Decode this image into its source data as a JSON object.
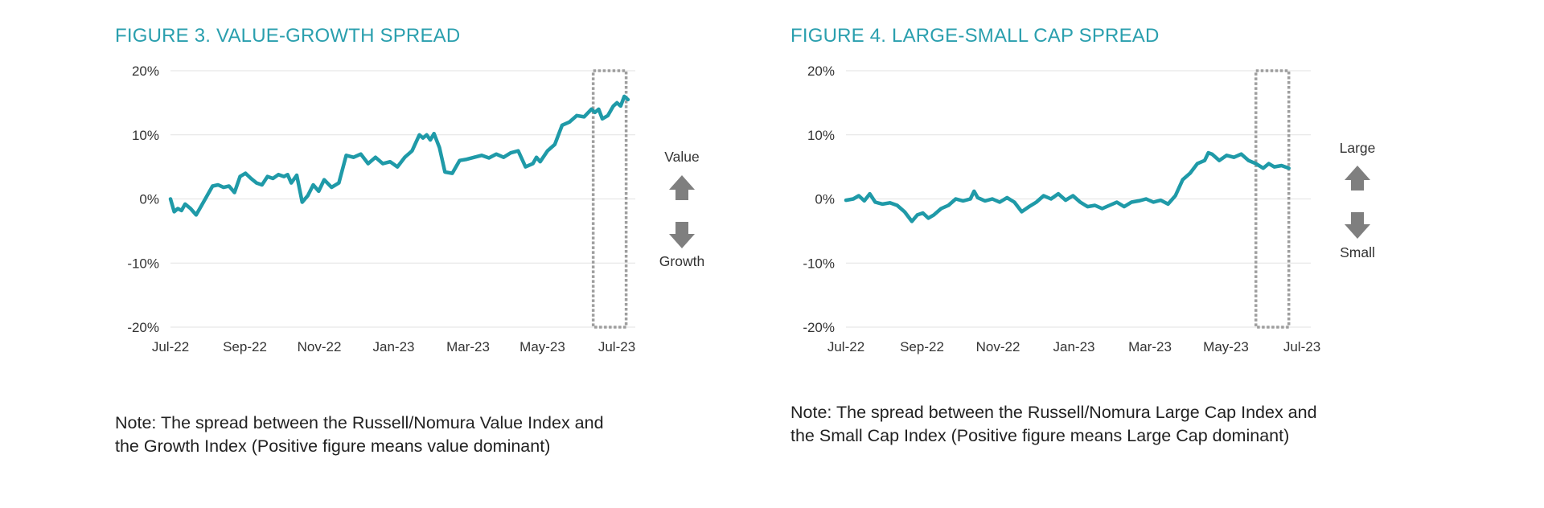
{
  "colors": {
    "title": "#2a9fae",
    "line": "#1f9aa8",
    "grid": "#e2e2e2",
    "highlight": "#9e9e9e",
    "arrow": "#7f7f7f",
    "text": "#222222"
  },
  "figure3": {
    "title": "FIGURE 3. VALUE-GROWTH SPREAD",
    "note_line1": "Note: The spread between the Russell/Nomura Value Index and",
    "note_line2": "the Growth Index (Positive figure means value dominant)",
    "up_label": "Value",
    "down_label": "Growth"
  },
  "figure4": {
    "title": "FIGURE 4. LARGE-SMALL CAP SPREAD",
    "note_line1": "Note: The spread between the Russell/Nomura Large Cap Index and",
    "note_line2": "the Small Cap Index (Positive figure means Large Cap dominant)",
    "up_label": "Large",
    "down_label": "Small"
  },
  "chart_data": [
    {
      "type": "line",
      "title": "FIGURE 3. VALUE-GROWTH SPREAD",
      "xlabel": "",
      "ylabel": "",
      "ylim": [
        -20,
        20
      ],
      "yticks": [
        20,
        10,
        0,
        -10,
        -20
      ],
      "ytick_labels": [
        "20%",
        "10%",
        "0%",
        "-10%",
        "-20%"
      ],
      "xlim": [
        0,
        12.7
      ],
      "xticks": [
        0,
        2,
        4,
        6,
        8,
        10,
        12
      ],
      "xtick_labels": [
        "Jul-22",
        "Sep-22",
        "Nov-22",
        "Jan-23",
        "Mar-23",
        "May-23",
        "Jul-23"
      ],
      "highlight_x": [
        11.55,
        12.45
      ],
      "series": [
        {
          "name": "Value-Growth spread",
          "x": [
            0,
            0.1,
            0.2,
            0.3,
            0.4,
            0.55,
            0.7,
            0.85,
            1.0,
            1.15,
            1.3,
            1.45,
            1.6,
            1.75,
            1.9,
            2.05,
            2.2,
            2.35,
            2.5,
            2.65,
            2.8,
            2.95,
            3.1,
            3.2,
            3.3,
            3.45,
            3.6,
            3.75,
            3.9,
            4.05,
            4.2,
            4.4,
            4.6,
            4.8,
            5.0,
            5.2,
            5.4,
            5.6,
            5.8,
            6.0,
            6.2,
            6.4,
            6.6,
            6.8,
            6.9,
            7.0,
            7.1,
            7.2,
            7.35,
            7.5,
            7.7,
            7.9,
            8.1,
            8.3,
            8.5,
            8.7,
            8.9,
            9.1,
            9.3,
            9.5,
            9.7,
            9.9,
            10.0,
            10.1,
            10.3,
            10.5,
            10.7,
            10.9,
            11.1,
            11.3,
            11.5,
            11.6,
            11.7,
            11.8,
            11.95,
            12.1,
            12.2,
            12.3,
            12.4,
            12.5
          ],
          "values": [
            0,
            -2,
            -1.5,
            -1.8,
            -0.8,
            -1.5,
            -2.5,
            -1,
            0.5,
            2,
            2.2,
            1.8,
            2,
            1,
            3.5,
            4,
            3.2,
            2.5,
            2.2,
            3.5,
            3.2,
            3.8,
            3.5,
            3.8,
            2.5,
            3.7,
            -0.5,
            0.5,
            2.2,
            1.2,
            3,
            1.8,
            2.5,
            6.8,
            6.5,
            7,
            5.5,
            6.5,
            5.5,
            5.8,
            5,
            6.5,
            7.5,
            10,
            9.5,
            10,
            9.2,
            10.2,
            8,
            4.2,
            4,
            6,
            6.2,
            6.5,
            6.8,
            6.4,
            7,
            6.5,
            7.2,
            7.5,
            5,
            5.5,
            6.5,
            5.8,
            7.5,
            8.5,
            11.5,
            12,
            13,
            12.8,
            14,
            13.5,
            14,
            12.5,
            13,
            14.5,
            15,
            14.5,
            16,
            15.5
          ]
        }
      ]
    },
    {
      "type": "line",
      "title": "FIGURE 4. LARGE-SMALL CAP SPREAD",
      "xlabel": "",
      "ylabel": "",
      "ylim": [
        -20,
        20
      ],
      "yticks": [
        20,
        10,
        0,
        -10,
        -20
      ],
      "ytick_labels": [
        "20%",
        "10%",
        "0%",
        "-10%",
        "-20%"
      ],
      "xlim": [
        0,
        12.7
      ],
      "xticks": [
        0,
        2,
        4,
        6,
        8,
        10,
        12
      ],
      "xtick_labels": [
        "Jul-22",
        "Sep-22",
        "Nov-22",
        "Jan-23",
        "Mar-23",
        "May-23",
        "Jul-23"
      ],
      "highlight_x": [
        11.2,
        12.1
      ],
      "series": [
        {
          "name": "Large-Small cap spread",
          "x": [
            0,
            0.2,
            0.35,
            0.5,
            0.65,
            0.8,
            1.0,
            1.2,
            1.4,
            1.6,
            1.8,
            1.95,
            2.1,
            2.25,
            2.4,
            2.6,
            2.8,
            3.0,
            3.2,
            3.4,
            3.5,
            3.6,
            3.8,
            4.0,
            4.2,
            4.4,
            4.6,
            4.8,
            5.0,
            5.2,
            5.4,
            5.6,
            5.8,
            6.0,
            6.2,
            6.4,
            6.6,
            6.8,
            7.0,
            7.2,
            7.4,
            7.6,
            7.8,
            8.0,
            8.2,
            8.4,
            8.6,
            8.8,
            9.0,
            9.2,
            9.4,
            9.6,
            9.8,
            9.9,
            10.0,
            10.2,
            10.4,
            10.6,
            10.8,
            11.0,
            11.2,
            11.4,
            11.55,
            11.7,
            11.9,
            12.1
          ],
          "values": [
            -0.2,
            0,
            0.5,
            -0.3,
            0.8,
            -0.5,
            -0.8,
            -0.6,
            -1,
            -2,
            -3.5,
            -2.5,
            -2.2,
            -3,
            -2.5,
            -1.5,
            -1,
            0,
            -0.3,
            0,
            1.2,
            0.2,
            -0.3,
            0,
            -0.5,
            0.2,
            -0.5,
            -2,
            -1.2,
            -0.5,
            0.5,
            0,
            0.8,
            -0.2,
            0.5,
            -0.5,
            -1.2,
            -1,
            -1.5,
            -1,
            -0.5,
            -1.2,
            -0.5,
            -0.3,
            0,
            -0.5,
            -0.2,
            -0.8,
            0.5,
            3,
            4,
            5.5,
            6,
            7.2,
            7,
            6,
            6.8,
            6.5,
            7,
            6,
            5.5,
            4.8,
            5.5,
            5,
            5.2,
            4.8
          ]
        }
      ]
    }
  ]
}
